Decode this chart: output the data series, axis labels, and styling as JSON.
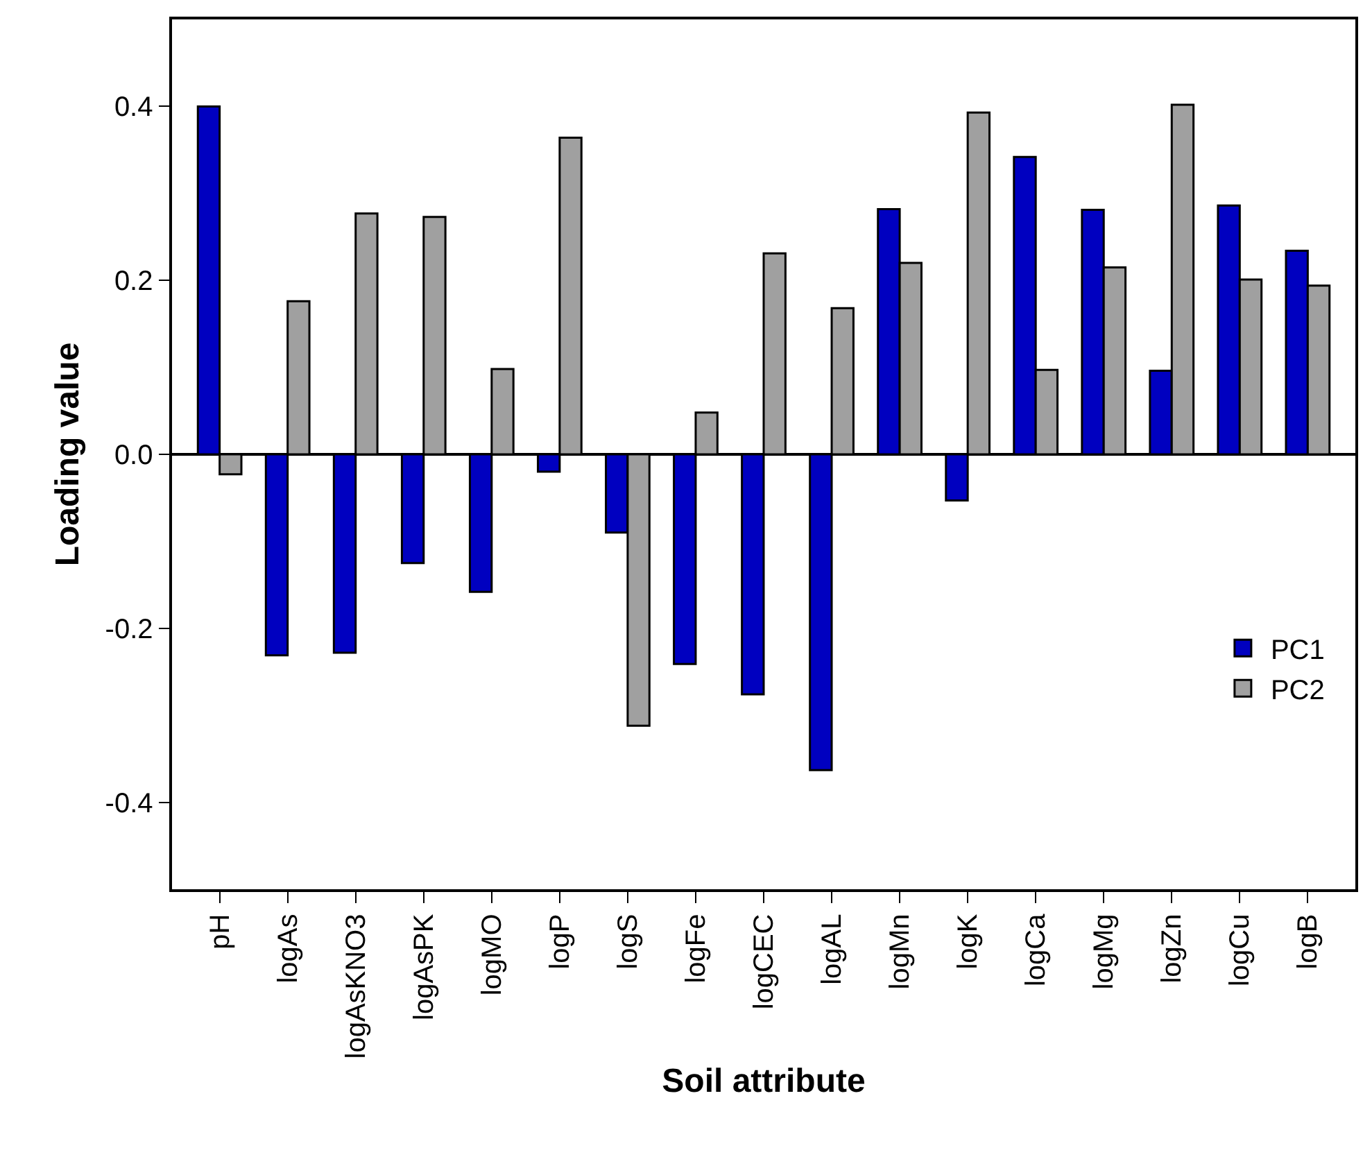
{
  "chart_data": {
    "type": "bar",
    "xlabel": "Soil attribute",
    "ylabel": "Loading value",
    "categories": [
      "pH",
      "logAs",
      "logAsKNO3",
      "logAsPK",
      "logMO",
      "logP",
      "logS",
      "logFe",
      "logCEC",
      "logAL",
      "logMn",
      "logK",
      "logCa",
      "logMg",
      "logZn",
      "logCu",
      "logB"
    ],
    "series": [
      {
        "name": "PC1",
        "color": "#0000c0",
        "values": [
          0.4,
          -0.231,
          -0.228,
          -0.125,
          -0.158,
          -0.02,
          -0.09,
          -0.241,
          -0.276,
          -0.363,
          0.282,
          -0.053,
          0.342,
          0.281,
          0.096,
          0.286,
          0.234
        ]
      },
      {
        "name": "PC2",
        "color": "#a0a0a0",
        "values": [
          -0.023,
          0.176,
          0.277,
          0.273,
          0.098,
          0.364,
          -0.312,
          0.048,
          0.231,
          0.168,
          0.22,
          0.393,
          0.097,
          0.215,
          0.402,
          0.201,
          0.194
        ]
      }
    ],
    "ylim": [
      -0.5,
      0.5
    ],
    "yticks": [
      -0.4,
      -0.2,
      {
        "value": 0,
        "label": "0.0"
      },
      0.2,
      0.4
    ],
    "legend": "bottom right"
  }
}
